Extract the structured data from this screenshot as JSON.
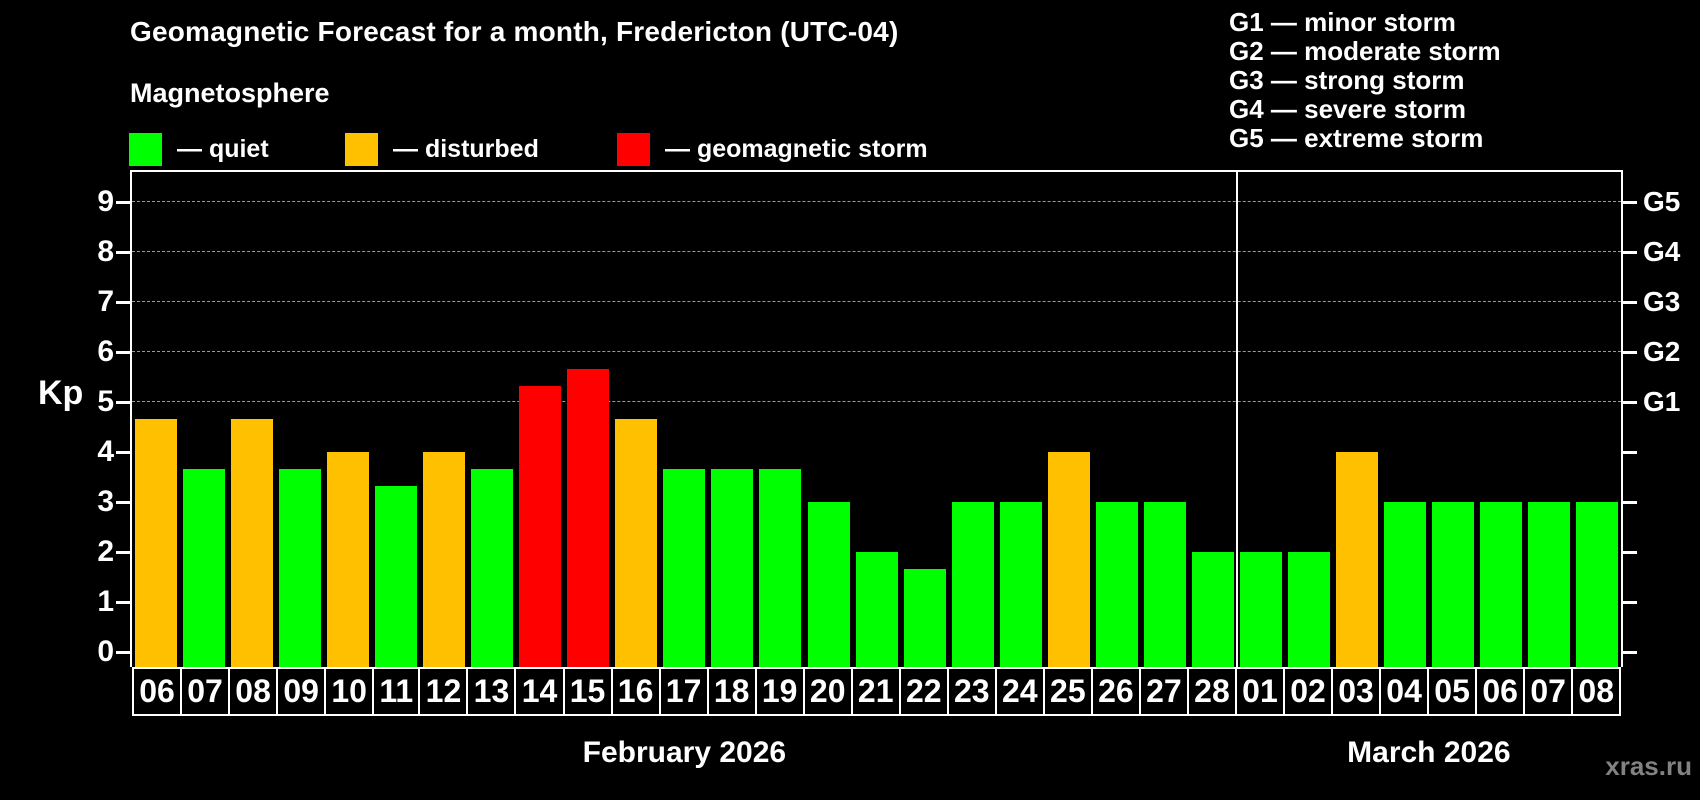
{
  "header": {
    "title": "Geomagnetic Forecast for a month, Fredericton (UTC-04)",
    "subtitle": "Magnetosphere"
  },
  "legend": {
    "items": [
      {
        "key": "quiet",
        "label": "— quiet",
        "color": "#00ff00"
      },
      {
        "key": "disturbed",
        "label": "— disturbed",
        "color": "#ffc000"
      },
      {
        "key": "storm",
        "label": "— geomagnetic storm",
        "color": "#ff0000"
      }
    ]
  },
  "g_legend": [
    "G1 — minor storm",
    "G2 — moderate storm",
    "G3 — strong storm",
    "G4 — severe storm",
    "G5 — extreme storm"
  ],
  "watermark": "xras.ru",
  "chart_data": {
    "type": "bar",
    "title": "Geomagnetic Forecast for a month, Fredericton (UTC-04)",
    "subtitle": "Magnetosphere",
    "ylabel": "Kp",
    "ylim": [
      0,
      9
    ],
    "yticks": [
      0,
      1,
      2,
      3,
      4,
      5,
      6,
      7,
      8,
      9
    ],
    "grid": "horizontal dashed lines at Kp 5-9 only",
    "legend_position": "top",
    "right_axis": [
      {
        "label": "G5",
        "kp": 9
      },
      {
        "label": "G4",
        "kp": 8
      },
      {
        "label": "G3",
        "kp": 7
      },
      {
        "label": "G2",
        "kp": 6
      },
      {
        "label": "G1",
        "kp": 5
      }
    ],
    "colors": {
      "quiet": "#00ff00",
      "disturbed": "#ffc000",
      "storm": "#ff0000"
    },
    "months": [
      {
        "label": "February 2026",
        "days": 23
      },
      {
        "label": "March 2026",
        "days": 8
      }
    ],
    "bars": [
      {
        "day": "06",
        "kp": 4.67,
        "status": "disturbed"
      },
      {
        "day": "07",
        "kp": 3.67,
        "status": "quiet"
      },
      {
        "day": "08",
        "kp": 4.67,
        "status": "disturbed"
      },
      {
        "day": "09",
        "kp": 3.67,
        "status": "quiet"
      },
      {
        "day": "10",
        "kp": 4.0,
        "status": "disturbed"
      },
      {
        "day": "11",
        "kp": 3.33,
        "status": "quiet"
      },
      {
        "day": "12",
        "kp": 4.0,
        "status": "disturbed"
      },
      {
        "day": "13",
        "kp": 3.67,
        "status": "quiet"
      },
      {
        "day": "14",
        "kp": 5.33,
        "status": "storm"
      },
      {
        "day": "15",
        "kp": 5.67,
        "status": "storm"
      },
      {
        "day": "16",
        "kp": 4.67,
        "status": "disturbed"
      },
      {
        "day": "17",
        "kp": 3.67,
        "status": "quiet"
      },
      {
        "day": "18",
        "kp": 3.67,
        "status": "quiet"
      },
      {
        "day": "19",
        "kp": 3.67,
        "status": "quiet"
      },
      {
        "day": "20",
        "kp": 3.0,
        "status": "quiet"
      },
      {
        "day": "21",
        "kp": 2.0,
        "status": "quiet"
      },
      {
        "day": "22",
        "kp": 1.67,
        "status": "quiet"
      },
      {
        "day": "23",
        "kp": 3.0,
        "status": "quiet"
      },
      {
        "day": "24",
        "kp": 3.0,
        "status": "quiet"
      },
      {
        "day": "25",
        "kp": 4.0,
        "status": "disturbed"
      },
      {
        "day": "26",
        "kp": 3.0,
        "status": "quiet"
      },
      {
        "day": "27",
        "kp": 3.0,
        "status": "quiet"
      },
      {
        "day": "28",
        "kp": 2.0,
        "status": "quiet"
      },
      {
        "day": "01",
        "kp": 2.0,
        "status": "quiet"
      },
      {
        "day": "02",
        "kp": 2.0,
        "status": "quiet"
      },
      {
        "day": "03",
        "kp": 4.0,
        "status": "disturbed"
      },
      {
        "day": "04",
        "kp": 3.0,
        "status": "quiet"
      },
      {
        "day": "05",
        "kp": 3.0,
        "status": "quiet"
      },
      {
        "day": "06",
        "kp": 3.0,
        "status": "quiet"
      },
      {
        "day": "07",
        "kp": 3.0,
        "status": "quiet"
      },
      {
        "day": "08",
        "kp": 3.0,
        "status": "quiet"
      }
    ]
  }
}
